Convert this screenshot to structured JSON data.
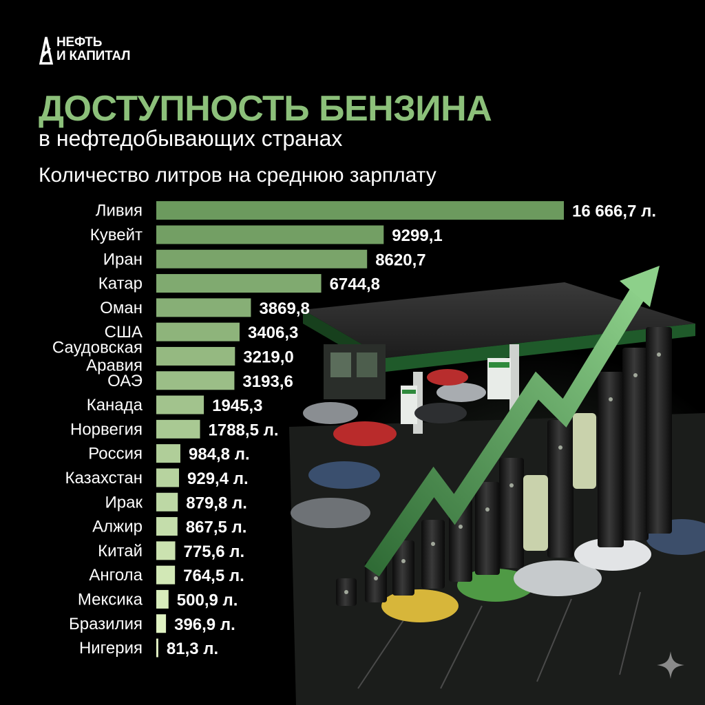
{
  "brand": {
    "line1": "НЕФТЬ",
    "line2": "И КАПИТАЛ"
  },
  "header": {
    "title": "ДОСТУПНОСТЬ БЕНЗИНА",
    "subtitle": "в нефтедобывающих странах",
    "caption": "Количество литров на среднюю зарплату"
  },
  "colors": {
    "title_green": "#8cc07a",
    "bar_dark": "#6c9a5e",
    "bar_light": "#e6f7c8",
    "arrow_green": "#6db06a"
  },
  "icons": [
    "oil-derrick-logo-icon",
    "sparkle-icon"
  ],
  "chart_data": {
    "type": "bar",
    "orientation": "horizontal",
    "categories": [
      [
        "Ливия"
      ],
      [
        "Кувейт"
      ],
      [
        "Иран"
      ],
      [
        "Катар"
      ],
      [
        "Оман"
      ],
      [
        "США"
      ],
      [
        "Саудовская",
        "Аравия"
      ],
      [
        "ОАЭ"
      ],
      [
        "Канада"
      ],
      [
        "Норвегия"
      ],
      [
        "Россия"
      ],
      [
        "Казахстан"
      ],
      [
        "Ирак"
      ],
      [
        "Алжир"
      ],
      [
        "Китай"
      ],
      [
        "Ангола"
      ],
      [
        "Мексика"
      ],
      [
        "Бразилия"
      ],
      [
        "Нигерия"
      ]
    ],
    "values": [
      16666.7,
      9299.1,
      8620.7,
      6744.8,
      3869.8,
      3406.3,
      3219.0,
      3193.6,
      1945.3,
      1788.5,
      984.8,
      929.4,
      879.8,
      867.5,
      775.6,
      764.5,
      500.9,
      396.9,
      81.3
    ],
    "value_labels": [
      "16 666,7 л.",
      "9299,1",
      "8620,7",
      "6744,8",
      "3869,8",
      "3406,3",
      "3219,0",
      "3193,6",
      "1945,3",
      "1788,5 л.",
      "984,8 л.",
      "929,4 л.",
      "879,8 л.",
      "867,5 л.",
      "775,6 л.",
      "764,5 л.",
      "500,9 л.",
      "396,9 л.",
      "81,3 л."
    ],
    "xlim": [
      0,
      16666.7
    ],
    "grid": false,
    "legend": "none"
  }
}
